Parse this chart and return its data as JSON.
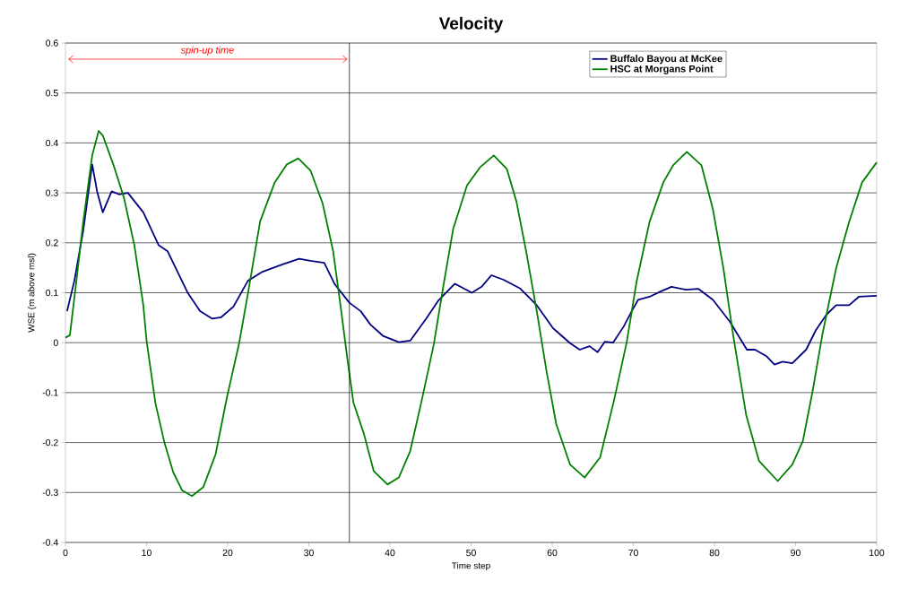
{
  "chart_data": {
    "type": "line",
    "title": "Velocity",
    "xlabel": "Time step",
    "ylabel": "WSE (m above msl)",
    "xlim": [
      0,
      100
    ],
    "ylim": [
      -0.4,
      0.6
    ],
    "xticks": [
      0,
      10,
      20,
      30,
      40,
      50,
      60,
      70,
      80,
      90,
      100
    ],
    "yticks": [
      -0.4,
      -0.3,
      -0.2,
      -0.1,
      0,
      0.1,
      0.2,
      0.3,
      0.4,
      0.5,
      0.6
    ],
    "grid": "y",
    "legend": "top right",
    "marker": "none",
    "line_style": "solid",
    "ref_lines": [
      {
        "axis": "x",
        "value": 35,
        "color": "#000000"
      }
    ],
    "annotations": [
      "spin-up time"
    ],
    "series": [
      {
        "name": "Buffalo Bayou at McKee",
        "color": "#000080",
        "x": [
          0.2,
          1.1,
          2.2,
          3.3,
          3.9,
          4.6,
          5.7,
          6.6,
          7.7,
          9.6,
          11.5,
          12.6,
          15.1,
          16.6,
          18.1,
          19.2,
          20.7,
          22.5,
          24.3,
          26.6,
          28.8,
          30.2,
          31.9,
          33.2,
          35.0,
          36.4,
          37.6,
          39.2,
          41.1,
          42.5,
          44.5,
          46.0,
          48.0,
          50.1,
          51.3,
          52.5,
          54.0,
          56.0,
          58.1,
          60.1,
          62.2,
          63.4,
          64.6,
          65.6,
          66.5,
          67.5,
          68.8,
          69.8,
          70.6,
          72,
          73.3,
          74.7,
          76.5,
          78,
          79.8,
          81.9,
          84,
          85,
          86.4,
          87.4,
          88.4,
          89.6,
          91.3,
          92.5,
          93.8,
          95,
          96.6,
          97.8,
          100
        ],
        "values": [
          0.063,
          0.124,
          0.225,
          0.357,
          0.303,
          0.261,
          0.303,
          0.297,
          0.3,
          0.261,
          0.195,
          0.183,
          0.099,
          0.063,
          0.048,
          0.051,
          0.072,
          0.124,
          0.142,
          0.156,
          0.168,
          0.164,
          0.16,
          0.117,
          0.08,
          0.063,
          0.036,
          0.013,
          0.001,
          0.004,
          0.049,
          0.085,
          0.118,
          0.1,
          0.112,
          0.135,
          0.126,
          0.109,
          0.075,
          0.029,
          -0.001,
          -0.014,
          -0.007,
          -0.019,
          0.002,
          0.0,
          0.032,
          0.063,
          0.086,
          0.092,
          0.102,
          0.112,
          0.106,
          0.108,
          0.086,
          0.042,
          -0.014,
          -0.014,
          -0.027,
          -0.044,
          -0.038,
          -0.041,
          -0.014,
          0.025,
          0.056,
          0.075,
          0.075,
          0.092,
          0.094
        ]
      },
      {
        "name": "HSC at Morgans Point",
        "color": "#008000",
        "x": [
          0,
          0.55,
          1.3,
          2.2,
          3.3,
          4.1,
          4.6,
          5.9,
          7.2,
          8.5,
          9.6,
          10.0,
          11.1,
          12.2,
          13.3,
          14.4,
          15.6,
          17.0,
          18.5,
          19.9,
          21.4,
          22.5,
          24,
          25.8,
          27.3,
          28.7,
          30.2,
          31.7,
          33.0,
          33.9,
          34.8,
          35.5,
          36.8,
          38,
          39.7,
          41.1,
          42.5,
          43.9,
          45.4,
          46.6,
          47.8,
          49.5,
          51.1,
          52.8,
          54.4,
          55.6,
          56.8,
          58.1,
          59.3,
          60.5,
          62.2,
          64.0,
          65.9,
          67.6,
          69.2,
          70.4,
          72,
          73.7,
          74.9,
          76.6,
          78.4,
          79.8,
          81.1,
          82.3,
          83.9,
          85.5,
          87.8,
          89.6,
          90.9,
          92.1,
          93.3,
          95.0,
          96.6,
          98.2,
          100
        ],
        "values": [
          0.01,
          0.015,
          0.117,
          0.243,
          0.375,
          0.424,
          0.415,
          0.357,
          0.291,
          0.195,
          0.075,
          0.004,
          -0.122,
          -0.2,
          -0.26,
          -0.296,
          -0.307,
          -0.289,
          -0.224,
          -0.11,
          -0.002,
          0.099,
          0.243,
          0.321,
          0.357,
          0.369,
          0.345,
          0.279,
          0.183,
          0.075,
          -0.038,
          -0.12,
          -0.183,
          -0.257,
          -0.284,
          -0.27,
          -0.217,
          -0.117,
          -0.004,
          0.115,
          0.228,
          0.315,
          0.351,
          0.375,
          0.348,
          0.282,
          0.182,
          0.063,
          -0.057,
          -0.163,
          -0.244,
          -0.27,
          -0.23,
          -0.117,
          0.002,
          0.122,
          0.242,
          0.321,
          0.355,
          0.382,
          0.355,
          0.268,
          0.149,
          0.016,
          -0.144,
          -0.237,
          -0.277,
          -0.244,
          -0.197,
          -0.097,
          0.016,
          0.149,
          0.242,
          0.321,
          0.361
        ]
      }
    ]
  }
}
